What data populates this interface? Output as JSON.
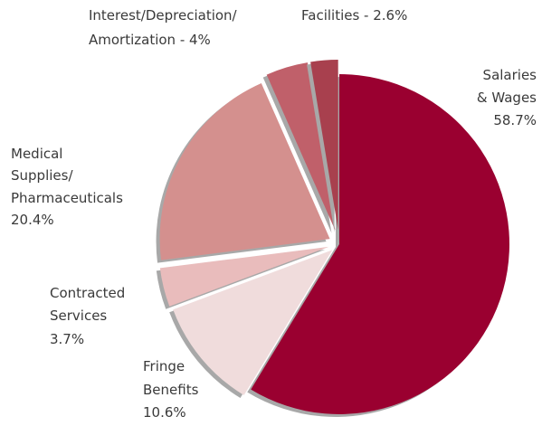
{
  "chart_data": {
    "type": "pie",
    "categories": [
      [
        "Salaries",
        "& Wages"
      ],
      [
        "Fringe",
        "Benefits"
      ],
      [
        "Contracted",
        "Services"
      ],
      [
        "Medical",
        "Supplies/",
        "Pharmaceuticals"
      ],
      [
        "Interest/Depreciation/",
        "Amortization - "
      ],
      [
        "Facilities - "
      ]
    ],
    "values": [
      58.7,
      10.6,
      3.7,
      20.4,
      4,
      2.6
    ],
    "value_labels": [
      "58.7%",
      "10.6%",
      "3.7%",
      "20.4%",
      "4%",
      "2.6%"
    ],
    "colors": [
      "#9a0030",
      "#f0dcdc",
      "#e9bcbc",
      "#d4908e",
      "#c0606a",
      "#a8404e"
    ]
  }
}
